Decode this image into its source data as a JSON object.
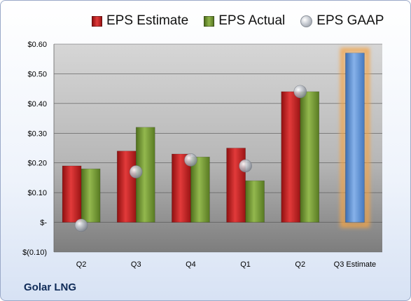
{
  "company": "Golar LNG",
  "chart_data": {
    "type": "bar",
    "categories": [
      "Q2",
      "Q3",
      "Q4",
      "Q1",
      "Q2",
      "Q3 Estimate"
    ],
    "series": [
      {
        "name": "EPS Estimate",
        "kind": "bar",
        "color": "#d42a2a",
        "values": [
          0.19,
          0.24,
          0.23,
          0.25,
          0.44,
          null
        ]
      },
      {
        "name": "EPS Actual",
        "kind": "bar",
        "color": "#7ea23c",
        "values": [
          0.18,
          0.32,
          0.22,
          0.14,
          0.44,
          null
        ]
      },
      {
        "name": "EPS GAAP",
        "kind": "marker",
        "color": "#b8bcc4",
        "values": [
          -0.01,
          0.17,
          0.21,
          0.19,
          0.44,
          null
        ]
      },
      {
        "name": "Q3 Estimate",
        "kind": "bar",
        "color": "#6b9bd8",
        "glow": "#f4a443",
        "values": [
          null,
          null,
          null,
          null,
          null,
          0.57
        ]
      }
    ],
    "yticks": [
      "$(0.10)",
      "$-",
      "$0.10",
      "$0.20",
      "$0.30",
      "$0.40",
      "$0.50",
      "$0.60"
    ],
    "ylim": [
      -0.1,
      0.6
    ],
    "ystep": 0.1,
    "grid": true,
    "legend_position": "top"
  }
}
